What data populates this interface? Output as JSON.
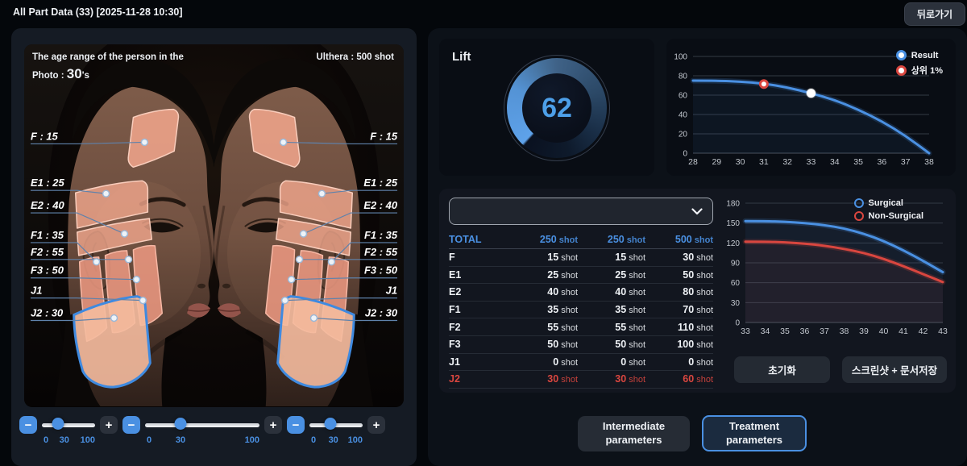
{
  "header": {
    "title": "All Part Data (33) [2025-11-28 10:30]",
    "back_label": "뒤로가기"
  },
  "photo": {
    "age_line1": "The age range of the person in the",
    "age_prefix": "Photo : ",
    "age_value": "30",
    "age_suffix": "'s",
    "device_label": "Ulthera : 500 shot",
    "regions": [
      {
        "id": "F",
        "label": "F : 15"
      },
      {
        "id": "E1",
        "label": "E1 : 25"
      },
      {
        "id": "E2",
        "label": "E2 : 40"
      },
      {
        "id": "F1",
        "label": "F1 : 35"
      },
      {
        "id": "F2",
        "label": "F2 : 55"
      },
      {
        "id": "F3",
        "label": "F3 : 50"
      },
      {
        "id": "J1",
        "label": "J1"
      },
      {
        "id": "J2",
        "label": "J2 : 30"
      }
    ]
  },
  "sliders": [
    {
      "min": "0",
      "value": "30",
      "max": "100"
    },
    {
      "min": "0",
      "value": "30",
      "max": "100"
    },
    {
      "min": "0",
      "value": "30",
      "max": "100"
    }
  ],
  "gauge": {
    "title": "Lift",
    "value": "62"
  },
  "chart_data": [
    {
      "type": "line",
      "x": [
        28,
        29,
        30,
        31,
        32,
        33,
        34,
        35,
        36,
        37,
        38
      ],
      "ylim": [
        0,
        100
      ],
      "yticks": [
        0,
        20,
        40,
        60,
        80,
        100
      ],
      "grid": true,
      "legend_position": "top-right",
      "legend": [
        {
          "label": "Result",
          "color": "#4a90e2"
        },
        {
          "label": "상위 1%",
          "color": "#d9463f"
        }
      ],
      "series": [
        {
          "name": "Result",
          "color": "#4a90e2",
          "values": [
            75,
            75,
            74,
            72,
            68,
            62,
            55,
            45,
            33,
            18,
            0
          ]
        }
      ],
      "points": [
        {
          "label": "Result",
          "x": 33,
          "y": 62,
          "style": "solid",
          "color": "#4a90e2"
        },
        {
          "label": "상위 1%",
          "x": 31,
          "y": 71.5,
          "style": "ring",
          "color": "#d9463f"
        }
      ]
    },
    {
      "type": "line",
      "x": [
        33,
        34,
        35,
        36,
        37,
        38,
        39,
        40,
        41,
        42,
        43
      ],
      "ylim": [
        0,
        180
      ],
      "yticks": [
        0,
        30,
        60,
        90,
        120,
        150,
        180
      ],
      "grid": true,
      "legend_position": "top-right",
      "series": [
        {
          "name": "Surgical",
          "color": "#4a90e2",
          "values": [
            153,
            153,
            152,
            150,
            147,
            142,
            134,
            123,
            109,
            93,
            76
          ]
        },
        {
          "name": "Non-Surgical",
          "color": "#d9463f",
          "values": [
            122,
            122,
            121,
            119,
            116,
            111,
            105,
            96,
            85,
            73,
            61
          ]
        }
      ]
    }
  ],
  "table": {
    "unit": "shot",
    "header": {
      "part": "TOTAL",
      "c1": "250",
      "c2": "250",
      "c3": "500"
    },
    "rows": [
      {
        "part": "F",
        "c1": "15",
        "c2": "15",
        "c3": "30",
        "alert": false
      },
      {
        "part": "E1",
        "c1": "25",
        "c2": "25",
        "c3": "50",
        "alert": false
      },
      {
        "part": "E2",
        "c1": "40",
        "c2": "40",
        "c3": "80",
        "alert": false
      },
      {
        "part": "F1",
        "c1": "35",
        "c2": "35",
        "c3": "70",
        "alert": false
      },
      {
        "part": "F2",
        "c1": "55",
        "c2": "55",
        "c3": "110",
        "alert": false
      },
      {
        "part": "F3",
        "c1": "50",
        "c2": "50",
        "c3": "100",
        "alert": false
      },
      {
        "part": "J1",
        "c1": "0",
        "c2": "0",
        "c3": "0",
        "alert": false
      },
      {
        "part": "J2",
        "c1": "30",
        "c2": "30",
        "c3": "60",
        "alert": true
      }
    ]
  },
  "actions": {
    "reset": "초기화",
    "screenshot_save": "스크린샷 + 문서저장",
    "intermediate": "Intermediate parameters",
    "treatment": "Treatment parameters"
  },
  "colors": {
    "accent": "#4a90e2",
    "alert": "#d9463f",
    "panel": "#12161f",
    "value_text": "#4d9fe8"
  }
}
